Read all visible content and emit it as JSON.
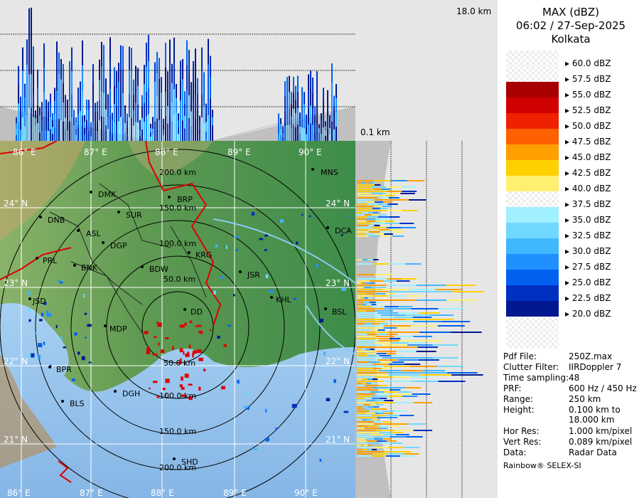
{
  "header": {
    "product": "MAX (dBZ)",
    "datetime": "06:02 / 27-Sep-2025",
    "station": "Kolkata"
  },
  "height_axis": {
    "top": "18.0 km",
    "bottom": "0.1 km"
  },
  "legend": {
    "levels": [
      {
        "label": "60.0 dBZ",
        "color": "#ffffff"
      },
      {
        "label": "57.5 dBZ",
        "color": "#ffffff"
      },
      {
        "label": "55.0 dBZ",
        "color": "#a80000"
      },
      {
        "label": "52.5 dBZ",
        "color": "#d00000"
      },
      {
        "label": "50.0 dBZ",
        "color": "#f02000"
      },
      {
        "label": "47.5 dBZ",
        "color": "#ff6000"
      },
      {
        "label": "45.0 dBZ",
        "color": "#ffa000"
      },
      {
        "label": "42.5 dBZ",
        "color": "#ffd000"
      },
      {
        "label": "40.0 dBZ",
        "color": "#fff070"
      },
      {
        "label": "37.5 dBZ",
        "color": "#fffff0"
      },
      {
        "label": "35.0 dBZ",
        "color": "#a0f0ff"
      },
      {
        "label": "32.5 dBZ",
        "color": "#70d8ff"
      },
      {
        "label": "30.0 dBZ",
        "color": "#40b8ff"
      },
      {
        "label": "27.5 dBZ",
        "color": "#2090ff"
      },
      {
        "label": "25.0 dBZ",
        "color": "#0060f0"
      },
      {
        "label": "22.5 dBZ",
        "color": "#0030c0"
      },
      {
        "label": "20.0 dBZ",
        "color": "#001890"
      }
    ]
  },
  "meta": [
    {
      "key": "Pdf File:",
      "value": "250Z.max"
    },
    {
      "key": "Clutter Filter:",
      "value": "IIRDoppler 7"
    },
    {
      "key": "Time sampling:",
      "value": "48"
    },
    {
      "key": "PRF:",
      "value": "600 Hz / 450 Hz"
    },
    {
      "key": "Range:",
      "value": "250 km"
    },
    {
      "key": "Height:",
      "value": "0.100 km to"
    },
    {
      "key": "",
      "value": "18.000 km"
    },
    {
      "key": "Hor Res:",
      "value": "1.000 km/pixel"
    },
    {
      "key": "Vert Res:",
      "value": "0.089 km/pixel"
    },
    {
      "key": "Data:",
      "value": "Radar Data"
    }
  ],
  "footer": "Rainbow® SELEX-SI",
  "map": {
    "lon_labels": [
      "86° E",
      "87° E",
      "88° E",
      "89° E",
      "90° E"
    ],
    "lat_labels": [
      "24° N",
      "23° N",
      "22° N",
      "21° N"
    ],
    "range_rings": [
      "50.0 km",
      "100.0 km",
      "150.0 km",
      "200.0 km"
    ],
    "range_rings_south": [
      "50.0 km",
      "100.0 km",
      "150.0 km",
      "200.0 km"
    ],
    "places": [
      {
        "name": "MNS"
      },
      {
        "name": "DMK"
      },
      {
        "name": "BRP"
      },
      {
        "name": "SUR"
      },
      {
        "name": "DNB"
      },
      {
        "name": "ASL"
      },
      {
        "name": "DCA"
      },
      {
        "name": "DGP"
      },
      {
        "name": "KRG"
      },
      {
        "name": "PRL"
      },
      {
        "name": "BNK"
      },
      {
        "name": "BDW"
      },
      {
        "name": "JSR"
      },
      {
        "name": "KHL"
      },
      {
        "name": "JSD"
      },
      {
        "name": "BSL"
      },
      {
        "name": "DD"
      },
      {
        "name": "MDP"
      },
      {
        "name": "BPR"
      },
      {
        "name": "DGH"
      },
      {
        "name": "BLS"
      },
      {
        "name": "SHD"
      }
    ]
  }
}
